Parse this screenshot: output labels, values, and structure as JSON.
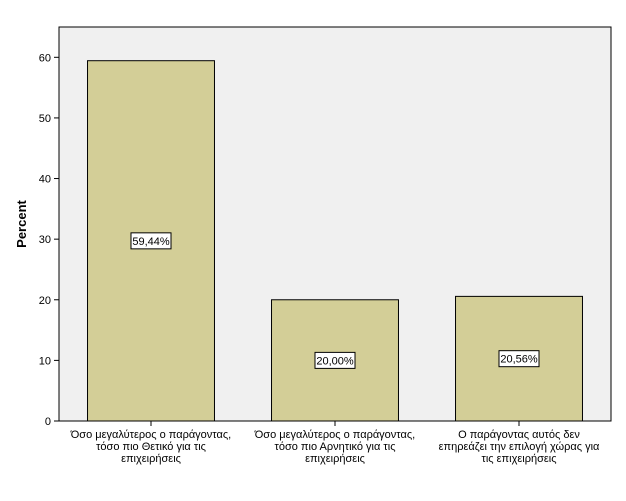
{
  "chart_data": {
    "type": "bar",
    "categories": [
      [
        "Όσο μεγαλύτερος ο παράγοντας,",
        "τόσο πιο Θετικό για τις",
        "επιχειρήσεις"
      ],
      [
        "Όσο μεγαλύτερος ο παράγοντας,",
        "τόσο πιο Αρνητικό για τις",
        "επιχειρήσεις"
      ],
      [
        "Ο παράγοντας αυτός δεν",
        "επηρεάζει την επιλογή χώρας για",
        "τις επιχειρήσεις"
      ]
    ],
    "values": [
      59.44,
      20.0,
      20.56
    ],
    "data_labels": [
      "59,44%",
      "20,00%",
      "20,56%"
    ],
    "title": "",
    "xlabel": "",
    "ylabel": "Percent",
    "ylim": [
      0,
      65
    ],
    "yticks": [
      0,
      10,
      20,
      30,
      40,
      50,
      60
    ],
    "grid": false,
    "colors": {
      "plot_background": "#f0f0f0",
      "bar_fill": "#d3ce97",
      "bar_stroke": "#000000"
    }
  }
}
